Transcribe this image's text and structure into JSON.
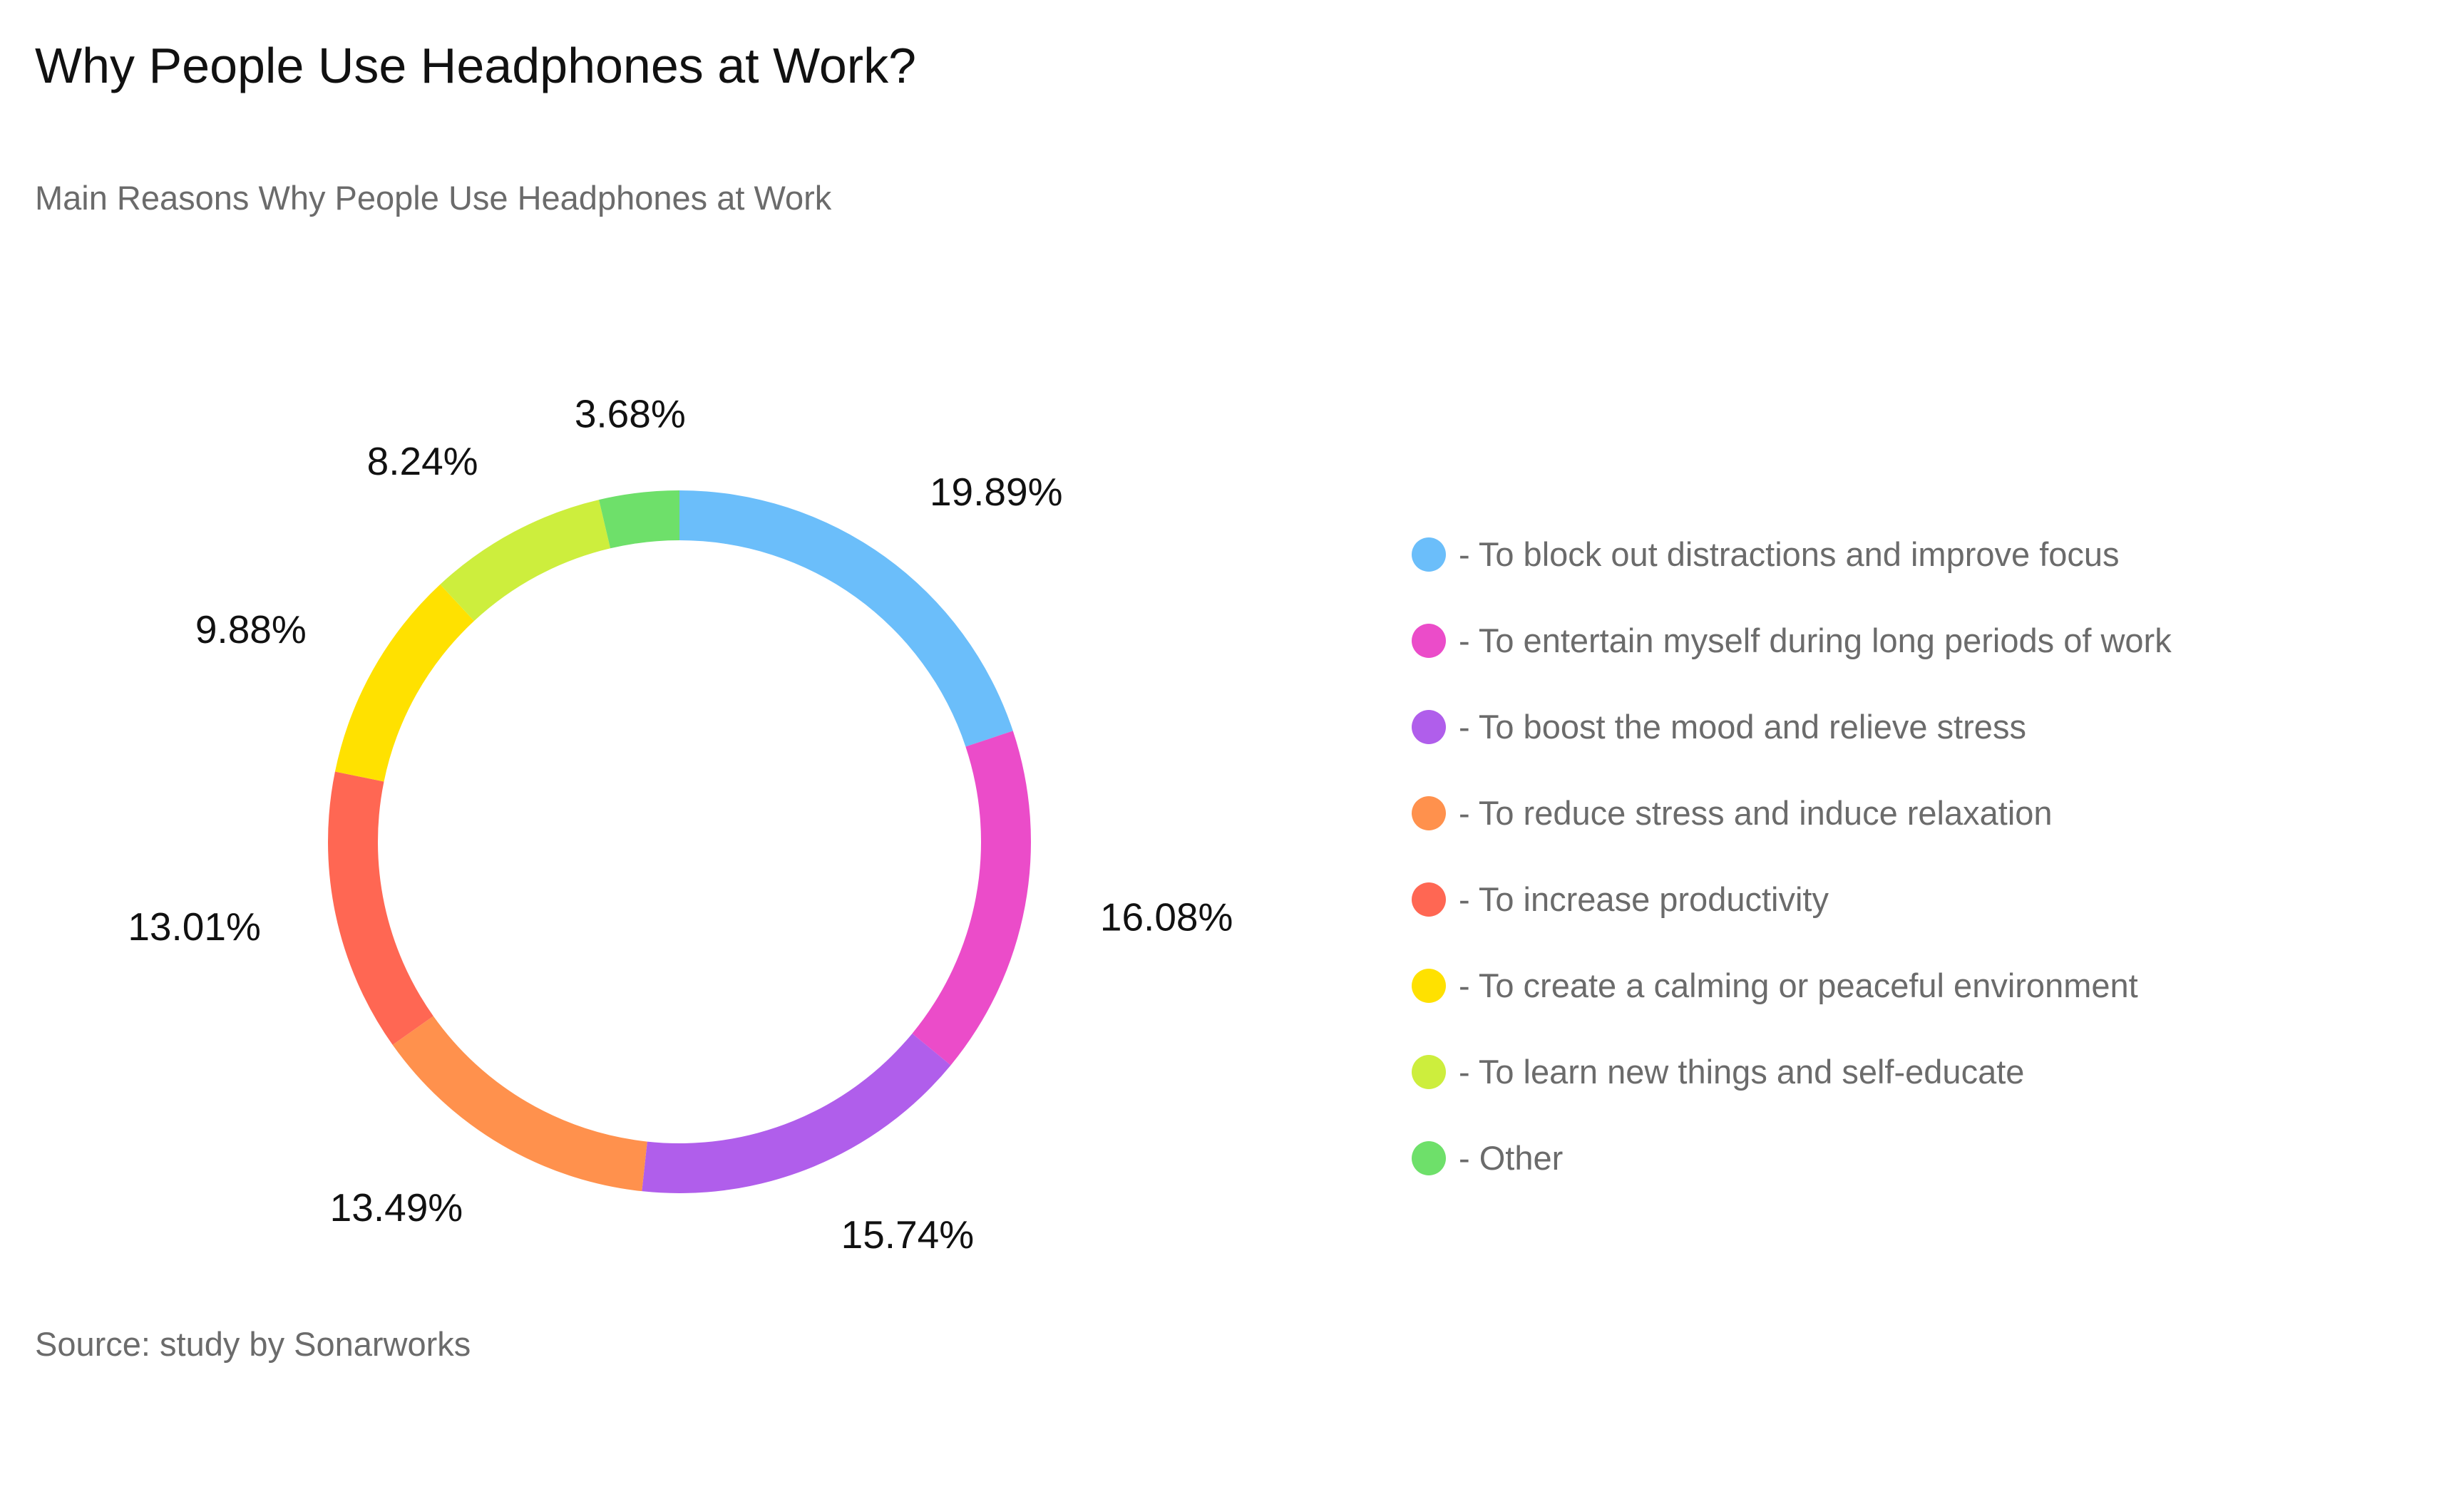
{
  "header": {
    "title": "Why People Use Headphones at Work?",
    "subtitle": "Main Reasons Why People Use Headphones at Work"
  },
  "footer": {
    "source": "Source: study by Sonarworks"
  },
  "chart_data": {
    "type": "pie",
    "variant": "donut",
    "title": "Why People Use Headphones at Work?",
    "subtitle": "Main Reasons Why People Use Headphones at Work",
    "legend_position": "right",
    "slices": [
      {
        "label": "To block out distractions and improve focus",
        "legend_text": "- To block out distractions and improve focus",
        "value": 19.89,
        "value_label": "19.89%",
        "color": "#6BBEFA"
      },
      {
        "label": "To entertain myself during long periods of work",
        "legend_text": "- To entertain myself during long periods of work",
        "value": 16.08,
        "value_label": "16.08%",
        "color": "#EB4CC9"
      },
      {
        "label": "To boost the mood and relieve stress",
        "legend_text": "- To boost the mood and relieve stress",
        "value": 15.74,
        "value_label": "15.74%",
        "color": "#B05EEB"
      },
      {
        "label": "To reduce stress and induce relaxation",
        "legend_text": "- To reduce stress and induce relaxation",
        "value": 13.49,
        "value_label": "13.49%",
        "color": "#FF914D"
      },
      {
        "label": "To increase productivity",
        "legend_text": "- To increase productivity",
        "value": 13.01,
        "value_label": "13.01%",
        "color": "#FF6753"
      },
      {
        "label": "To create a calming or peaceful environment",
        "legend_text": "- To create a calming or peaceful environment",
        "value": 9.88,
        "value_label": "9.88%",
        "color": "#FFE100"
      },
      {
        "label": "To learn new things and self-educate",
        "legend_text": "- To learn new things and self-educate",
        "value": 8.24,
        "value_label": "8.24%",
        "color": "#CDEE3D"
      },
      {
        "label": "Other",
        "legend_text": "- Other",
        "value": 3.68,
        "value_label": "3.68%",
        "color": "#6EE06A"
      }
    ]
  }
}
